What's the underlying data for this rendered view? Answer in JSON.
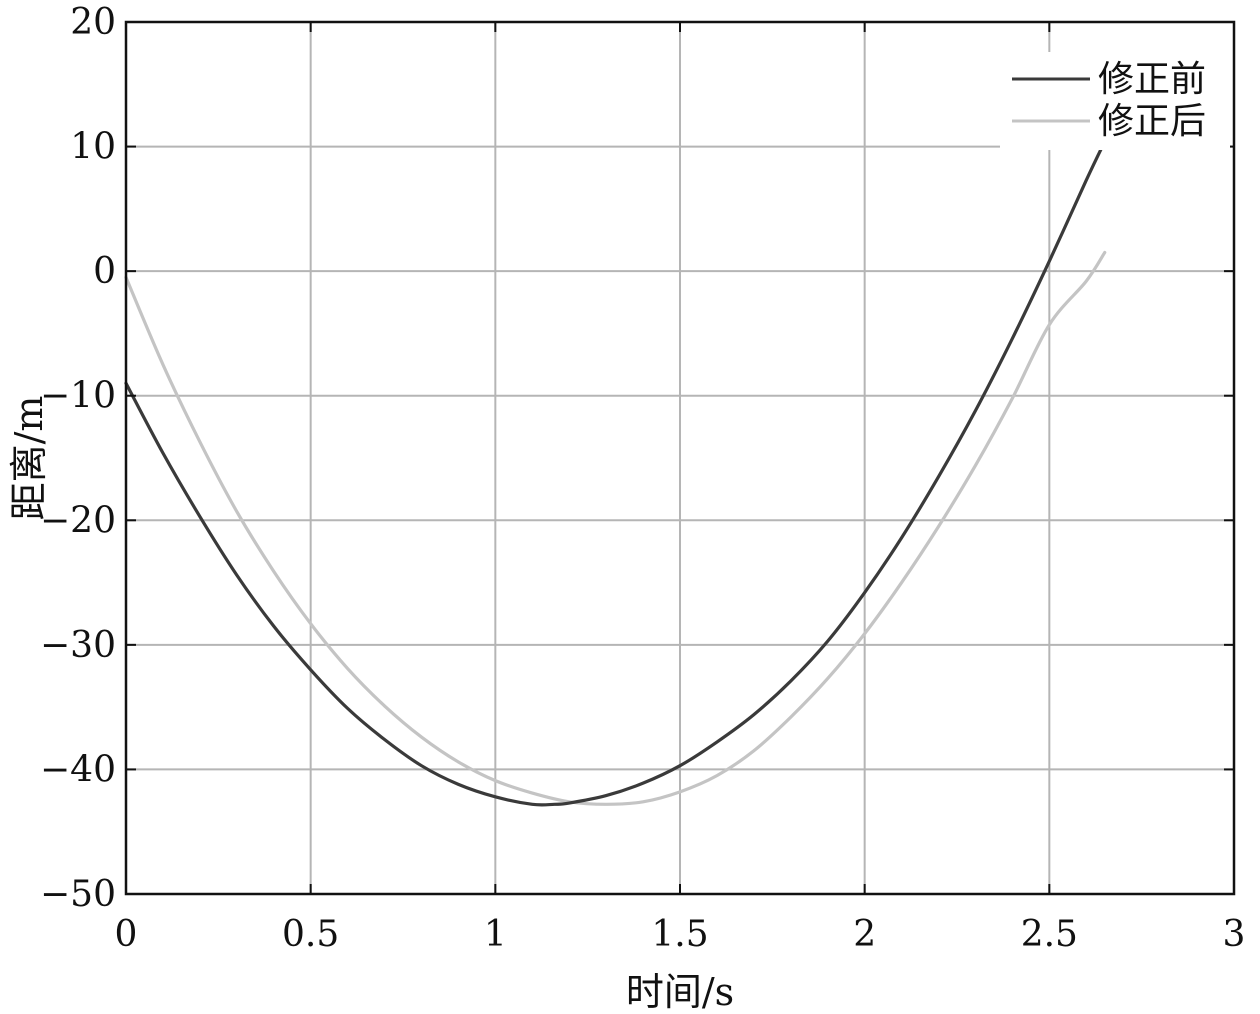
{
  "chart_data": {
    "type": "line",
    "title": "",
    "xlabel": "时间/s",
    "ylabel": "距离/m",
    "xlim": [
      0,
      3
    ],
    "ylim": [
      -50,
      20
    ],
    "xticks": [
      0,
      0.5,
      1,
      1.5,
      2,
      2.5,
      3
    ],
    "xtick_labels": [
      "0",
      "0.5",
      "1",
      "1.5",
      "2",
      "2.5",
      "3"
    ],
    "yticks": [
      -50,
      -40,
      -30,
      -20,
      -10,
      0,
      10,
      20
    ],
    "ytick_labels": [
      "−50",
      "−40",
      "−30",
      "−20",
      "−10",
      "0",
      "10",
      "20"
    ],
    "grid": true,
    "legend_position": "top-right",
    "series": [
      {
        "name": "修正前",
        "color": "#3a3a3a",
        "x": [
          0,
          0.1,
          0.2,
          0.3,
          0.4,
          0.5,
          0.6,
          0.7,
          0.8,
          0.9,
          1.0,
          1.1,
          1.16,
          1.2,
          1.3,
          1.4,
          1.5,
          1.6,
          1.7,
          1.8,
          1.9,
          2.0,
          2.1,
          2.2,
          2.3,
          2.4,
          2.5,
          2.6,
          2.65
        ],
        "y": [
          -9.0,
          -14.6,
          -19.7,
          -24.4,
          -28.5,
          -32.0,
          -35.1,
          -37.6,
          -39.7,
          -41.2,
          -42.2,
          -42.8,
          -42.8,
          -42.7,
          -42.1,
          -41.1,
          -39.7,
          -37.8,
          -35.6,
          -32.9,
          -29.7,
          -25.8,
          -21.4,
          -16.5,
          -11.2,
          -5.4,
          0.8,
          7.3,
          10.4
        ]
      },
      {
        "name": "修正后",
        "color": "#c4c4c4",
        "x": [
          0,
          0.1,
          0.2,
          0.3,
          0.4,
          0.5,
          0.6,
          0.7,
          0.8,
          0.9,
          1.0,
          1.1,
          1.2,
          1.3,
          1.4,
          1.5,
          1.6,
          1.7,
          1.8,
          1.9,
          2.0,
          2.1,
          2.2,
          2.3,
          2.4,
          2.5,
          2.6,
          2.65
        ],
        "y": [
          -0.5,
          -7.5,
          -13.7,
          -19.3,
          -24.1,
          -28.3,
          -31.9,
          -34.9,
          -37.4,
          -39.4,
          -40.9,
          -41.9,
          -42.6,
          -42.8,
          -42.6,
          -41.8,
          -40.5,
          -38.5,
          -35.8,
          -32.7,
          -29.1,
          -25.0,
          -20.5,
          -15.6,
          -10.2,
          -4.3,
          -0.8,
          1.5
        ]
      }
    ]
  }
}
